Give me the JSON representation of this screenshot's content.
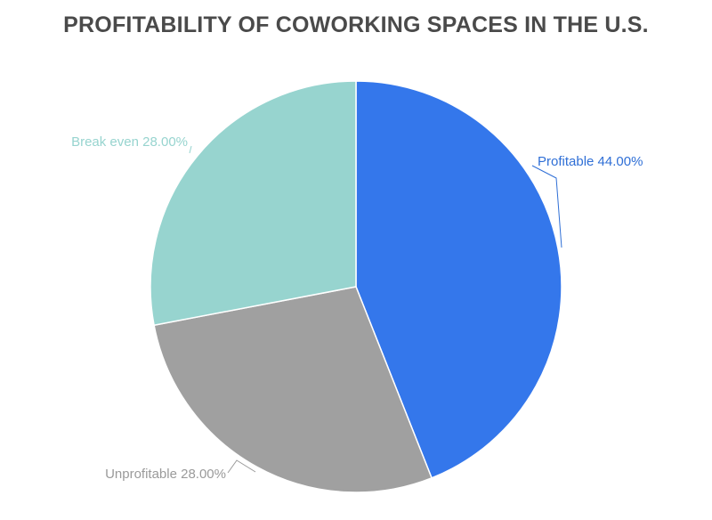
{
  "chart_data": {
    "type": "pie",
    "title": "PROFITABILITY OF COWORKING SPACES IN THE U.S.",
    "slices": [
      {
        "label": "Profitable",
        "value": 44.0,
        "display": "Profitable 44.00%",
        "color": "#3477eb"
      },
      {
        "label": "Unprofitable",
        "value": 28.0,
        "display": "Unprofitable 28.00%",
        "color": "#a0a0a0"
      },
      {
        "label": "Break even",
        "value": 28.0,
        "display": "Break even 28.00%",
        "color": "#97d4cf"
      }
    ],
    "label_colors": {
      "Profitable": "#2f6fd6",
      "Unprofitable": "#9a9a9a",
      "Break even": "#97d4cf"
    }
  }
}
